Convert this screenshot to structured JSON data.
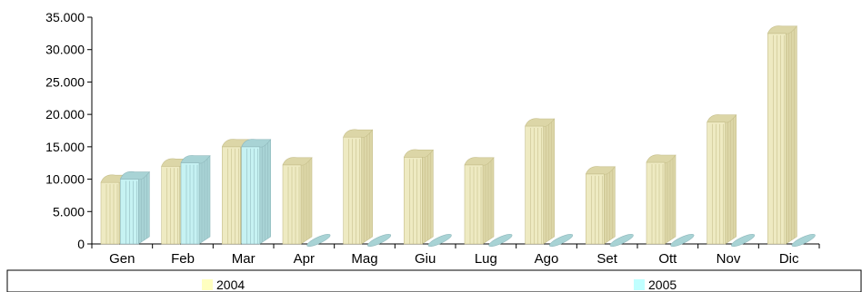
{
  "chart_data": {
    "type": "bar",
    "categories": [
      "Gen",
      "Feb",
      "Mar",
      "Apr",
      "Mag",
      "Giu",
      "Lug",
      "Ago",
      "Set",
      "Ott",
      "Nov",
      "Dic"
    ],
    "series": [
      {
        "name": "2004",
        "values": [
          9500,
          12000,
          15000,
          12200,
          16500,
          13400,
          12200,
          18200,
          10800,
          12600,
          18800,
          32500
        ]
      },
      {
        "name": "2005",
        "values": [
          10000,
          12500,
          15000,
          0,
          0,
          0,
          0,
          0,
          0,
          0,
          0,
          0
        ]
      }
    ],
    "ylim": [
      0,
      35000
    ],
    "yticks": [
      "0",
      "5.000",
      "10.000",
      "15.000",
      "20.000",
      "25.000",
      "30.000",
      "35.000"
    ],
    "legend_position": "bottom",
    "grid": false,
    "colors": {
      "s2004_front": "#eeeac2",
      "s2004_top": "#dcd6a7",
      "s2004_stripe": "#c6bf8b",
      "s2005_front": "#c6f2f3",
      "s2005_top": "#a8d3d5",
      "s2005_stripe": "#8fb8bc",
      "legend_2004": "#ffffc0",
      "legend_2005": "#c0ffff",
      "axis": "#000000"
    }
  }
}
